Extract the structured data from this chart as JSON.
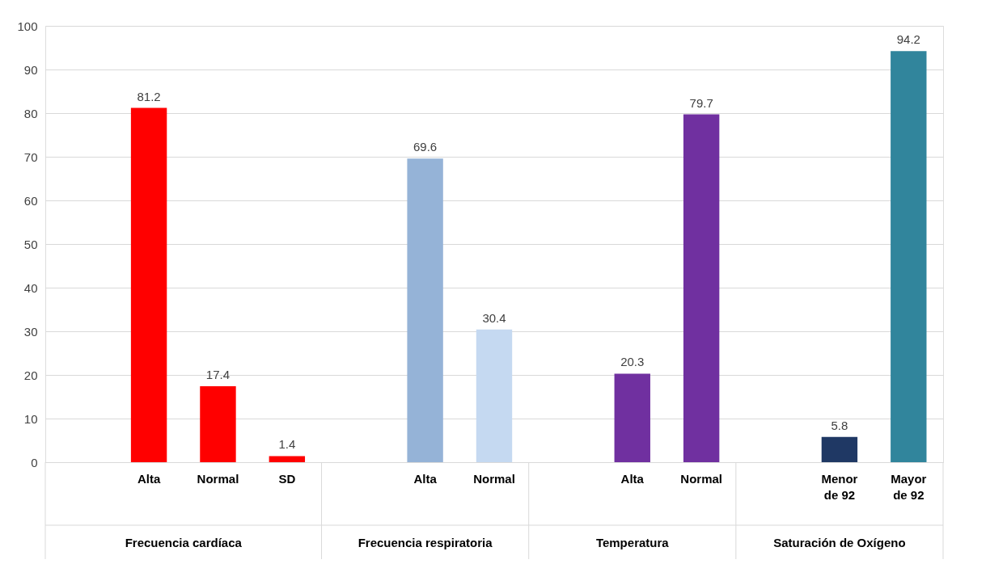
{
  "chart_data": {
    "type": "bar",
    "categories": [
      null,
      "Alta",
      "Normal",
      "SD",
      null,
      "Alta",
      "Normal",
      null,
      "Alta",
      "Normal",
      null,
      "Menor de 92",
      "Mayor de 92"
    ],
    "values": [
      null,
      81.2,
      17.4,
      1.4,
      null,
      69.6,
      30.4,
      null,
      20.3,
      79.7,
      null,
      5.8,
      94.2
    ],
    "colors": [
      "#ff0000",
      "#ff0000",
      "#ff0000",
      "#ff0000",
      "#95b3d7",
      "#95b3d7",
      "#c5d9f1",
      "#7030a0",
      "#7030a0",
      "#7030a0",
      "#1f3864",
      "#1f3864",
      "#31859c"
    ],
    "annotations": [
      "Frecuencia cardíaca",
      "Frecuencia respiratoria",
      "Temperatura",
      "Saturación de Oxígeno"
    ],
    "ylim": [
      0,
      100
    ],
    "yticks": [
      0,
      10,
      20,
      30,
      40,
      50,
      60,
      70,
      80,
      90,
      100
    ],
    "grid": "y",
    "data_labels": true
  }
}
